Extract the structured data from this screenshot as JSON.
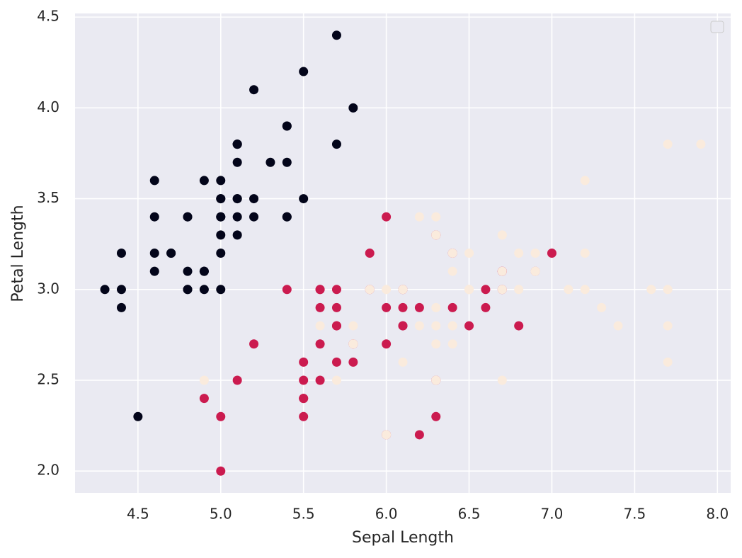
{
  "chart_data": {
    "type": "scatter",
    "xlabel": "Sepal Length",
    "ylabel": "Petal Length",
    "xlim": [
      4.12,
      8.08
    ],
    "ylim": [
      1.88,
      4.52
    ],
    "xticks": [
      4.5,
      {
        "value": 5.0,
        "label": "5.0"
      },
      5.5,
      {
        "value": 6.0,
        "label": "6.0"
      },
      6.5,
      {
        "value": 7.0,
        "label": "7.0"
      },
      7.5,
      {
        "value": 8.0,
        "label": "8.0"
      }
    ],
    "yticks": [
      {
        "value": 2.0,
        "label": "2.0"
      },
      2.5,
      {
        "value": 3.0,
        "label": "3.0"
      },
      3.5,
      {
        "value": 4.0,
        "label": "4.0"
      },
      4.5
    ],
    "grid": true,
    "legend": "upper right",
    "series": [
      {
        "color": "#03051a",
        "x": [
          5.1,
          4.9,
          4.7,
          4.6,
          5.0,
          5.4,
          4.6,
          5.0,
          4.4,
          4.9,
          5.4,
          4.8,
          4.8,
          4.3,
          5.8,
          5.7,
          5.4,
          5.1,
          5.7,
          5.1,
          5.4,
          5.1,
          4.6,
          5.1,
          4.8,
          5.0,
          5.0,
          5.2,
          5.2,
          4.7,
          4.8,
          5.4,
          5.2,
          5.5,
          4.9,
          5.0,
          5.5,
          4.9,
          4.4,
          5.1,
          5.0,
          4.5,
          4.4,
          5.0,
          5.1,
          4.8,
          5.1,
          4.6,
          5.3,
          5.0
        ],
        "values": [
          3.5,
          3.0,
          3.2,
          3.1,
          3.6,
          3.9,
          3.4,
          3.4,
          2.9,
          3.1,
          3.7,
          3.4,
          3.0,
          3.0,
          4.0,
          4.4,
          3.9,
          3.5,
          3.8,
          3.8,
          3.4,
          3.7,
          3.6,
          3.3,
          3.4,
          3.0,
          3.4,
          3.5,
          3.4,
          3.2,
          3.1,
          3.4,
          4.1,
          4.2,
          3.1,
          3.2,
          3.5,
          3.6,
          3.0,
          3.4,
          3.5,
          2.3,
          3.2,
          3.5,
          3.8,
          3.0,
          3.8,
          3.2,
          3.7,
          3.3
        ]
      },
      {
        "color": "#cb1b4f",
        "x": [
          7.0,
          6.4,
          6.9,
          5.5,
          6.5,
          5.7,
          6.3,
          4.9,
          6.6,
          5.2,
          5.0,
          5.9,
          6.0,
          6.1,
          5.6,
          6.7,
          5.6,
          5.8,
          6.2,
          5.6,
          5.9,
          6.1,
          6.3,
          6.1,
          6.4,
          6.6,
          6.8,
          6.7,
          6.0,
          5.7,
          5.5,
          5.5,
          5.8,
          6.0,
          5.4,
          6.0,
          6.7,
          6.3,
          5.6,
          5.5,
          5.5,
          6.1,
          5.8,
          5.0,
          5.6,
          5.7,
          5.7,
          6.2,
          5.1,
          5.7
        ],
        "values": [
          3.2,
          3.2,
          3.1,
          2.3,
          2.8,
          2.8,
          3.3,
          2.4,
          2.9,
          2.7,
          2.0,
          3.0,
          2.2,
          2.9,
          2.9,
          3.1,
          3.0,
          2.7,
          2.2,
          2.5,
          3.2,
          2.8,
          2.5,
          2.8,
          2.9,
          3.0,
          2.8,
          3.0,
          2.9,
          2.6,
          2.4,
          2.4,
          2.7,
          2.7,
          3.0,
          3.4,
          3.1,
          2.3,
          3.0,
          2.5,
          2.6,
          3.0,
          2.6,
          2.3,
          2.7,
          3.0,
          2.9,
          2.9,
          2.5,
          2.8
        ]
      },
      {
        "color": "#faebdd",
        "x": [
          6.3,
          5.8,
          7.1,
          6.3,
          6.5,
          7.6,
          4.9,
          7.3,
          6.7,
          7.2,
          6.5,
          6.4,
          6.8,
          5.7,
          5.8,
          6.4,
          6.5,
          7.7,
          7.7,
          6.0,
          6.9,
          5.6,
          7.7,
          6.3,
          6.7,
          7.2,
          6.2,
          6.1,
          6.4,
          7.2,
          7.4,
          7.9,
          6.4,
          6.3,
          6.1,
          7.7,
          6.3,
          6.4,
          6.0,
          6.9,
          6.7,
          6.9,
          5.8,
          6.8,
          6.7,
          6.7,
          6.3,
          6.5,
          6.2,
          5.9
        ],
        "values": [
          3.3,
          2.7,
          3.0,
          2.9,
          3.0,
          3.0,
          2.5,
          2.9,
          2.5,
          3.6,
          3.2,
          2.7,
          3.0,
          2.5,
          2.8,
          3.2,
          3.0,
          3.8,
          2.6,
          2.2,
          3.2,
          2.8,
          2.8,
          2.7,
          3.3,
          3.2,
          2.8,
          3.0,
          2.8,
          3.0,
          2.8,
          3.8,
          2.8,
          2.8,
          2.6,
          3.0,
          3.4,
          3.1,
          3.0,
          3.1,
          3.1,
          3.1,
          2.7,
          3.2,
          3.3,
          3.0,
          2.5,
          3.0,
          3.4,
          3.0
        ]
      }
    ]
  }
}
